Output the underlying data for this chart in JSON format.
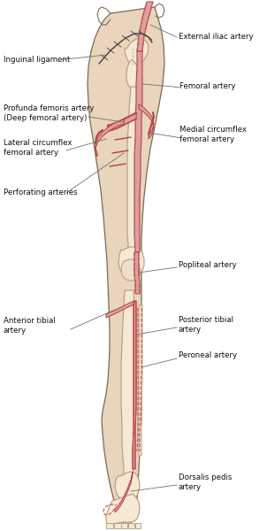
{
  "bg_color": "#ffffff",
  "skin_fill": "#e8d5bc",
  "skin_line": "#7a6a55",
  "bone_fill": "#f5e8d5",
  "bone_line": "#b89a78",
  "artery_fill": "#dba0a0",
  "artery_line": "#b84040",
  "artery_dashed": "#c05050",
  "label_line": "#707070",
  "text_color": "#111111",
  "font_size": 6.2,
  "labels": {
    "inguinal_ligament": "Inguinal ligament",
    "external_iliac": "External iliac artery",
    "femoral": "Femoral artery",
    "profunda": "Profunda femoris artery\n(Deep femoral artery)",
    "lateral_circumflex": "Lateral circumflex\nfemoral artery",
    "medial_circumflex": "Medial circumflex\nfemoral artery",
    "perforating": "Perforating arteries",
    "popliteal": "Popliteal artery",
    "anterior_tibial": "Anterior tibial\nartery",
    "posterior_tibial": "Posterior tibial\nartery",
    "peroneal": "Peroneal artery",
    "dorsalis_pedis": "Dorsalis pedis\nartery"
  }
}
